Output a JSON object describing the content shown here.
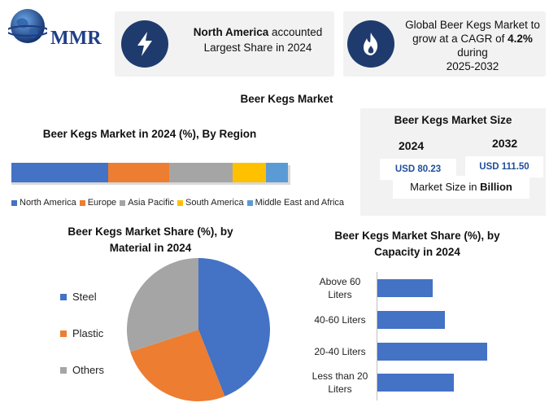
{
  "logo": {
    "text": "MMR"
  },
  "card_left": {
    "bold": "North America",
    "rest": " accounted",
    "line2": "Largest Share in 2024"
  },
  "card_right": {
    "line1": "Global Beer Kegs Market to",
    "line2_a": "grow at a CAGR of ",
    "line2_b": "4.2%",
    "line3": "during",
    "line4": "2025-2032"
  },
  "main_title": "Beer Kegs Market",
  "region": {
    "title": "Beer Kegs Market in 2024 (%), By Region",
    "segments": [
      {
        "name": "North America",
        "value": 35,
        "color": "#4472c4"
      },
      {
        "name": "Europe",
        "value": 22,
        "color": "#ed7d31"
      },
      {
        "name": "Asia Pacific",
        "value": 23,
        "color": "#a5a5a5"
      },
      {
        "name": "South America",
        "value": 12,
        "color": "#ffc000"
      },
      {
        "name": "Middle East and Africa",
        "value": 8,
        "color": "#5b9bd5"
      }
    ]
  },
  "size": {
    "title": "Beer Kegs Market Size",
    "year1": "2024",
    "value1": "USD 80.23",
    "year2": "2032",
    "value2": "USD 111.50",
    "unit_a": "Market Size in ",
    "unit_b": "Billion"
  },
  "material": {
    "title_line1": "Beer Kegs Market  Share (%), by",
    "title_line2": "Material in 2024",
    "legend": [
      {
        "name": "Steel",
        "color": "#4472c4"
      },
      {
        "name": "Plastic",
        "color": "#ed7d31"
      },
      {
        "name": "Others",
        "color": "#a5a5a5"
      }
    ]
  },
  "capacity": {
    "title_line1": "Beer Kegs Market  Share (%), by",
    "title_line2": "Capacity in 2024",
    "labels": [
      {
        "l1": "Above 60",
        "l2": "Liters"
      },
      {
        "l1": "40-60 Liters",
        "l2": ""
      },
      {
        "l1": "20-40 Liters",
        "l2": ""
      },
      {
        "l1": "Less than 20",
        "l2": "Liters"
      }
    ]
  },
  "chart_data": [
    {
      "type": "bar",
      "orientation": "horizontal-stacked",
      "title": "Beer Kegs Market in 2024 (%), By Region",
      "categories": [
        "North America",
        "Europe",
        "Asia Pacific",
        "South America",
        "Middle East and Africa"
      ],
      "values": [
        35,
        22,
        23,
        12,
        8
      ],
      "legend": "bottom"
    },
    {
      "type": "table",
      "title": "Beer Kegs Market Size",
      "x": [
        "2024",
        "2032"
      ],
      "values": [
        80.23,
        111.5
      ],
      "unit": "Market Size in Billion"
    },
    {
      "type": "pie",
      "title": "Beer Kegs Market  Share (%), by Material in 2024",
      "categories": [
        "Steel",
        "Plastic",
        "Others"
      ],
      "values": [
        44,
        26,
        30
      ],
      "legend": "left"
    },
    {
      "type": "bar",
      "orientation": "horizontal",
      "title": "Beer Kegs Market  Share (%), by Capacity in 2024",
      "categories": [
        "Above 60 Liters",
        "40-60 Liters",
        "20-40 Liters",
        "Less than 20 Liters"
      ],
      "values": [
        18,
        22,
        36,
        25
      ],
      "xlim": [
        0,
        50
      ],
      "grid": false
    }
  ]
}
